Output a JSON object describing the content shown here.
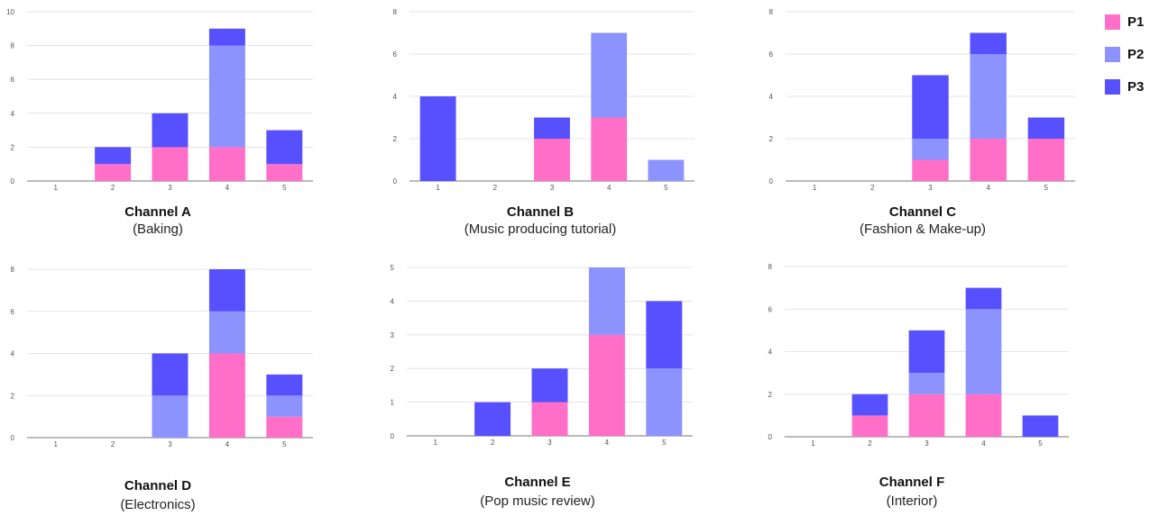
{
  "colors": {
    "P1": "#ff6ec7",
    "P2": "#8c93ff",
    "P3": "#5650ff"
  },
  "legend": [
    {
      "label": "P1",
      "color": "#ff6ec7"
    },
    {
      "label": "P2",
      "color": "#8c93ff"
    },
    {
      "label": "P3",
      "color": "#5650ff"
    }
  ],
  "chart_data": [
    {
      "type": "bar",
      "stacked": true,
      "title": "Channel A",
      "subtitle": "(Baking)",
      "categories": [
        "1",
        "2",
        "3",
        "4",
        "5"
      ],
      "ylim": [
        0,
        10
      ],
      "yticks": [
        0,
        2,
        4,
        6,
        8,
        10
      ],
      "series": [
        {
          "name": "P1",
          "values": [
            0,
            1,
            2,
            2,
            1
          ]
        },
        {
          "name": "P2",
          "values": [
            0,
            0,
            0,
            6,
            0
          ]
        },
        {
          "name": "P3",
          "values": [
            0,
            1,
            2,
            1,
            2
          ]
        }
      ]
    },
    {
      "type": "bar",
      "stacked": true,
      "title": "Channel B",
      "subtitle": "(Music producing tutorial)",
      "categories": [
        "1",
        "2",
        "3",
        "4",
        "5"
      ],
      "ylim": [
        0,
        8
      ],
      "yticks": [
        0,
        2,
        4,
        6,
        8
      ],
      "series": [
        {
          "name": "P1",
          "values": [
            0,
            0,
            2,
            3,
            0
          ]
        },
        {
          "name": "P2",
          "values": [
            0,
            0,
            0,
            4,
            1
          ]
        },
        {
          "name": "P3",
          "values": [
            4,
            0,
            1,
            0,
            0
          ]
        }
      ]
    },
    {
      "type": "bar",
      "stacked": true,
      "title": "Channel C",
      "subtitle": "(Fashion & Make-up)",
      "categories": [
        "1",
        "2",
        "3",
        "4",
        "5"
      ],
      "ylim": [
        0,
        8
      ],
      "yticks": [
        0,
        2,
        4,
        6,
        8
      ],
      "series": [
        {
          "name": "P1",
          "values": [
            0,
            0,
            1,
            2,
            2
          ]
        },
        {
          "name": "P2",
          "values": [
            0,
            0,
            1,
            4,
            0
          ]
        },
        {
          "name": "P3",
          "values": [
            0,
            0,
            3,
            1,
            1
          ]
        }
      ]
    },
    {
      "type": "bar",
      "stacked": true,
      "title": "Channel D",
      "subtitle": "(Electronics)",
      "categories": [
        "1",
        "2",
        "3",
        "4",
        "5"
      ],
      "ylim": [
        0,
        8
      ],
      "yticks": [
        0,
        2,
        4,
        6,
        8
      ],
      "series": [
        {
          "name": "P1",
          "values": [
            0,
            0,
            0,
            4,
            1
          ]
        },
        {
          "name": "P2",
          "values": [
            0,
            0,
            2,
            2,
            1
          ]
        },
        {
          "name": "P3",
          "values": [
            0,
            0,
            2,
            2,
            1
          ]
        }
      ]
    },
    {
      "type": "bar",
      "stacked": true,
      "title": "Channel E",
      "subtitle": "(Pop music review)",
      "categories": [
        "1",
        "2",
        "3",
        "4",
        "5"
      ],
      "ylim": [
        0,
        5
      ],
      "yticks": [
        0,
        1,
        2,
        3,
        4,
        5
      ],
      "series": [
        {
          "name": "P1",
          "values": [
            0,
            0,
            1,
            3,
            0
          ]
        },
        {
          "name": "P2",
          "values": [
            0,
            0,
            0,
            2,
            2
          ]
        },
        {
          "name": "P3",
          "values": [
            0,
            1,
            1,
            0,
            2
          ]
        }
      ]
    },
    {
      "type": "bar",
      "stacked": true,
      "title": "Channel F",
      "subtitle": "(Interior)",
      "categories": [
        "1",
        "2",
        "3",
        "4",
        "5"
      ],
      "ylim": [
        0,
        8
      ],
      "yticks": [
        0,
        2,
        4,
        6,
        8
      ],
      "series": [
        {
          "name": "P1",
          "values": [
            0,
            1,
            2,
            2,
            0
          ]
        },
        {
          "name": "P2",
          "values": [
            0,
            0,
            1,
            4,
            0
          ]
        },
        {
          "name": "P3",
          "values": [
            0,
            1,
            2,
            1,
            1
          ]
        }
      ]
    }
  ]
}
